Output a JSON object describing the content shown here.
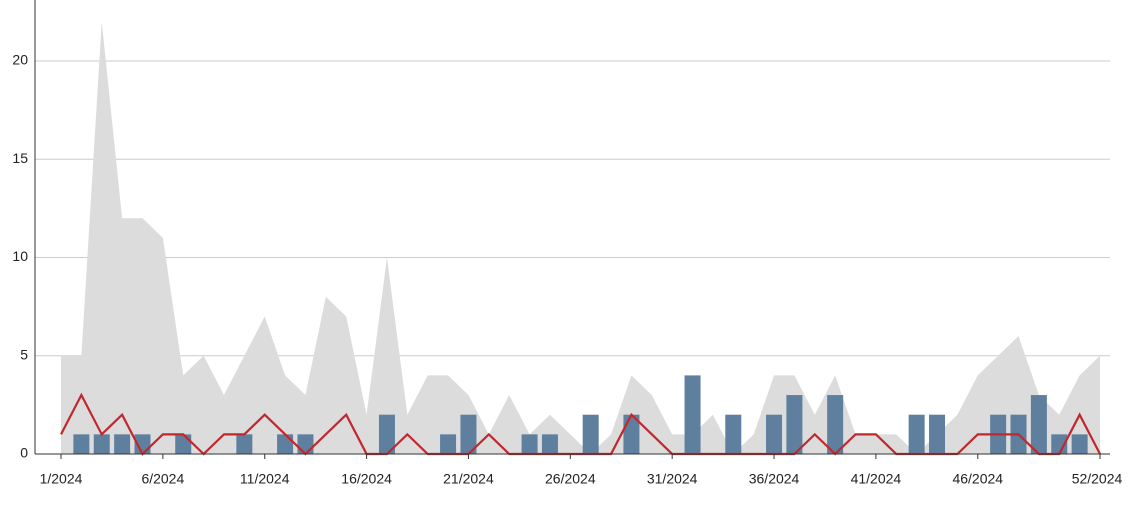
{
  "chart_data": {
    "type": "combo",
    "categories": [
      "1/2024",
      null,
      null,
      null,
      null,
      "6/2024",
      null,
      null,
      null,
      null,
      "11/2024",
      null,
      null,
      null,
      null,
      "16/2024",
      null,
      null,
      null,
      null,
      "21/2024",
      null,
      null,
      null,
      null,
      "26/2024",
      null,
      null,
      null,
      null,
      "31/2024",
      null,
      null,
      null,
      null,
      "36/2024",
      null,
      null,
      null,
      null,
      "41/2024",
      null,
      null,
      null,
      null,
      "46/2024",
      null,
      null,
      null,
      null,
      null,
      "52/2024"
    ],
    "series": [
      {
        "kind": "area",
        "color": "#dcdcdc",
        "values": [
          5,
          5,
          22,
          12,
          12,
          11,
          4,
          5,
          3,
          5,
          7,
          4,
          3,
          8,
          7,
          2,
          10,
          2,
          4,
          4,
          3,
          1,
          3,
          1,
          2,
          1,
          0,
          1,
          4,
          3,
          1,
          1,
          2,
          0,
          1,
          4,
          4,
          2,
          4,
          1,
          1,
          1,
          0,
          1,
          2,
          4,
          5,
          6,
          3,
          2,
          4,
          5
        ]
      },
      {
        "kind": "bar",
        "color": "#5f7f9f",
        "values": [
          0,
          1,
          1,
          1,
          1,
          0,
          1,
          0,
          0,
          1,
          0,
          1,
          1,
          0,
          0,
          0,
          2,
          0,
          0,
          1,
          2,
          0,
          0,
          1,
          1,
          0,
          2,
          0,
          2,
          0,
          0,
          4,
          0,
          2,
          0,
          2,
          3,
          0,
          3,
          0,
          0,
          0,
          2,
          2,
          0,
          0,
          2,
          2,
          3,
          1,
          1,
          0
        ]
      },
      {
        "kind": "line",
        "color": "#c0282d",
        "values": [
          1,
          3,
          1,
          2,
          0,
          1,
          1,
          0,
          1,
          1,
          2,
          1,
          0,
          1,
          2,
          0,
          0,
          1,
          0,
          0,
          0,
          1,
          0,
          0,
          0,
          0,
          0,
          0,
          2,
          1,
          0,
          0,
          0,
          0,
          0,
          0,
          0,
          1,
          0,
          1,
          1,
          0,
          0,
          0,
          0,
          1,
          1,
          1,
          0,
          0,
          2,
          0
        ]
      }
    ],
    "ylim": [
      0,
      23
    ],
    "yticks": [
      0,
      5,
      10,
      15,
      20
    ],
    "grid": true
  }
}
